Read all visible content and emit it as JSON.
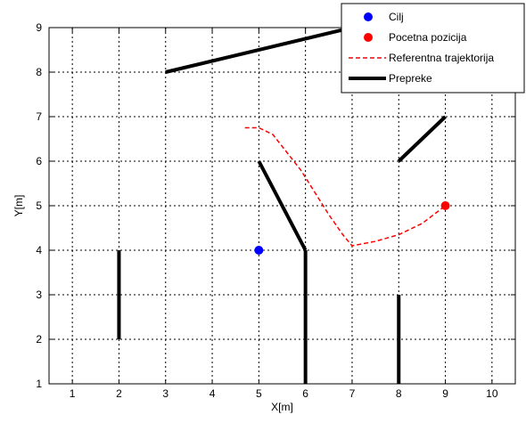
{
  "chart_data": {
    "type": "line",
    "xlabel": "X[m]",
    "ylabel": "Y[m]",
    "xlim": [
      0.5,
      10.5
    ],
    "ylim": [
      1,
      9
    ],
    "xticks": [
      1,
      2,
      3,
      4,
      5,
      6,
      7,
      8,
      9,
      10
    ],
    "yticks": [
      1,
      2,
      3,
      4,
      5,
      6,
      7,
      8,
      9
    ],
    "xtick_labels": [
      "1",
      "2",
      "3",
      "4",
      "5",
      "6",
      "7",
      "8",
      "9",
      "10"
    ],
    "ytick_labels": [
      "1",
      "2",
      "3",
      "4",
      "5",
      "6",
      "7",
      "8",
      "9"
    ],
    "grid": true,
    "legend_position": "top-right",
    "series": [
      {
        "name": "Cilj",
        "kind": "marker",
        "color": "#0000ff",
        "points": [
          [
            5,
            4
          ]
        ]
      },
      {
        "name": "Pocetna pozicija",
        "kind": "marker",
        "color": "#ff0000",
        "points": [
          [
            9,
            5
          ]
        ]
      },
      {
        "name": "Referentna trajektorija",
        "kind": "dashed-line",
        "color": "#ff0000",
        "points": [
          [
            4.7,
            6.75
          ],
          [
            5.0,
            6.75
          ],
          [
            5.3,
            6.6
          ],
          [
            5.6,
            6.2
          ],
          [
            5.9,
            5.8
          ],
          [
            6.2,
            5.3
          ],
          [
            6.5,
            4.8
          ],
          [
            6.8,
            4.35
          ],
          [
            7.0,
            4.1
          ],
          [
            7.5,
            4.2
          ],
          [
            8.0,
            4.35
          ],
          [
            8.5,
            4.6
          ],
          [
            9.0,
            5.0
          ]
        ]
      },
      {
        "name": "Prepreke",
        "kind": "segments",
        "color": "#000000",
        "segments": [
          [
            [
              3,
              8
            ],
            [
              7,
              9
            ]
          ],
          [
            [
              2,
              2
            ],
            [
              2,
              4
            ]
          ],
          [
            [
              5,
              6
            ],
            [
              6,
              4
            ]
          ],
          [
            [
              6,
              4
            ],
            [
              6,
              1
            ]
          ],
          [
            [
              8,
              1
            ],
            [
              8,
              3
            ]
          ],
          [
            [
              8,
              6
            ],
            [
              9,
              7
            ]
          ]
        ]
      }
    ]
  }
}
